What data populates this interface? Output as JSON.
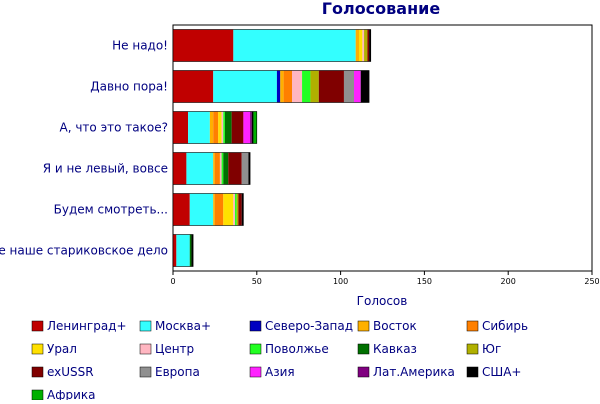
{
  "chart_data": {
    "type": "bar",
    "orientation": "horizontal",
    "stacked": true,
    "title": "Голосование",
    "xlabel": "Голосов",
    "ylabel": "",
    "xlim": [
      0,
      250
    ],
    "xticks": [
      0,
      50,
      100,
      150,
      200,
      250
    ],
    "grid": false,
    "legend_position": "bottom",
    "categories": [
      "Не надо!",
      "Давно пора!",
      "А, что это такое?",
      "Я и не левый, вовсе",
      "Будем смотреть...",
      "Не наше стариковское дело"
    ],
    "series": [
      {
        "name": "Ленинград+",
        "color": "#c00000",
        "values": [
          36,
          24,
          9,
          8,
          10,
          2
        ]
      },
      {
        "name": "Москва+",
        "color": "#33ffff",
        "values": [
          73,
          38,
          13,
          16,
          14,
          8
        ]
      },
      {
        "name": "Северо-Запад",
        "color": "#0000c0",
        "values": [
          0,
          2,
          0,
          0,
          0,
          0
        ]
      },
      {
        "name": "Восток",
        "color": "#ffb000",
        "values": [
          2,
          2,
          2,
          1,
          1,
          0
        ]
      },
      {
        "name": "Сибирь",
        "color": "#ff8000",
        "values": [
          0,
          5,
          3,
          3,
          5,
          0
        ]
      },
      {
        "name": "Урал",
        "color": "#ffe000",
        "values": [
          2,
          0,
          2,
          0,
          6,
          0
        ]
      },
      {
        "name": "Центр",
        "color": "#ffb6c1",
        "values": [
          1,
          6,
          1,
          1,
          1,
          0
        ]
      },
      {
        "name": "Поволжье",
        "color": "#22ff22",
        "values": [
          0,
          5,
          1,
          1,
          1,
          0
        ]
      },
      {
        "name": "Кавказ",
        "color": "#007000",
        "values": [
          0,
          0,
          4,
          3,
          0,
          1
        ]
      },
      {
        "name": "Юг",
        "color": "#b0b000",
        "values": [
          2,
          5,
          0,
          0,
          1,
          0
        ]
      },
      {
        "name": "exUSSR",
        "color": "#800000",
        "values": [
          1,
          15,
          7,
          8,
          2,
          0
        ]
      },
      {
        "name": "Европа",
        "color": "#909090",
        "values": [
          0,
          6,
          0,
          4,
          0,
          0
        ]
      },
      {
        "name": "Азия",
        "color": "#ff22ff",
        "values": [
          0,
          4,
          4,
          0,
          0,
          0
        ]
      },
      {
        "name": "Лат.Америка",
        "color": "#800080",
        "values": [
          0,
          0,
          1,
          0,
          0,
          0
        ]
      },
      {
        "name": "США+",
        "color": "#000000",
        "values": [
          1,
          5,
          1,
          1,
          1,
          1
        ]
      },
      {
        "name": "Африка",
        "color": "#00b000",
        "values": [
          0,
          0,
          2,
          0,
          0,
          0
        ]
      }
    ]
  }
}
